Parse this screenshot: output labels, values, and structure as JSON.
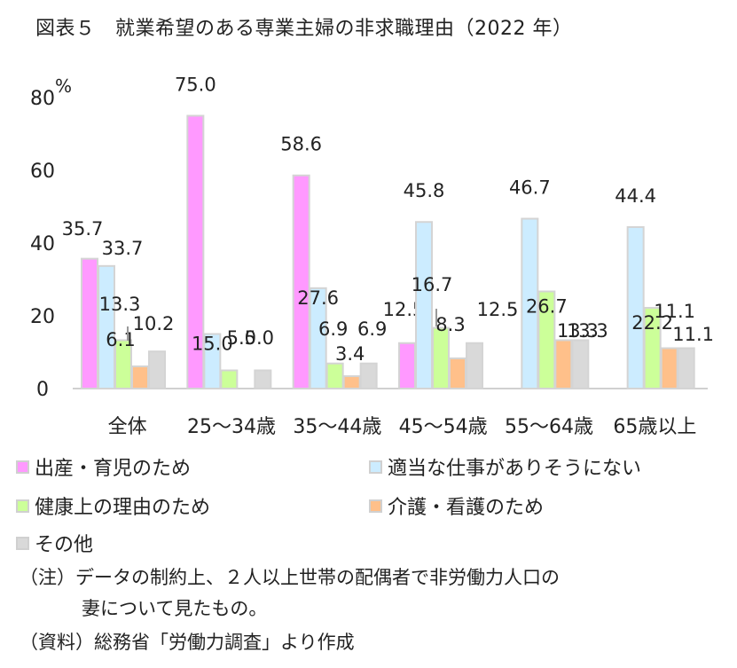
{
  "title": "図表５　就業希望のある専業主婦の非求職理由（2022 年）",
  "chart_data": {
    "type": "bar",
    "unit": "%",
    "ylim": [
      0,
      80
    ],
    "yticks": [
      0,
      20,
      40,
      60,
      80
    ],
    "grid": false,
    "legend_position": "bottom",
    "categories": [
      "全体",
      "25～34歳",
      "35～44歳",
      "45～54歳",
      "55～64歳",
      "65歳以上"
    ],
    "series": [
      {
        "name": "出産・育児のため",
        "color": "#FF99FF",
        "values": [
          35.7,
          75.0,
          58.6,
          12.5,
          null,
          null
        ]
      },
      {
        "name": "適当な仕事がありそうにない",
        "color": "#CCECFF",
        "values": [
          33.7,
          15.0,
          27.6,
          45.8,
          46.7,
          44.4
        ]
      },
      {
        "name": "健康上の理由のため",
        "color": "#CCFF99",
        "values": [
          13.3,
          5.0,
          6.9,
          16.7,
          26.7,
          22.2
        ]
      },
      {
        "name": "介護・看護のため",
        "color": "#FFC08A",
        "values": [
          6.1,
          null,
          3.4,
          8.3,
          13.3,
          11.1
        ]
      },
      {
        "name": "その他",
        "color": "#D9D9D9",
        "values": [
          10.2,
          5.0,
          6.9,
          12.5,
          13.3,
          11.1
        ]
      }
    ],
    "labels": [
      [
        "35.7",
        "75.0",
        "58.6",
        "12.5",
        "",
        ""
      ],
      [
        "33.7",
        "15.0",
        "27.6",
        "45.8",
        "46.7",
        "44.4"
      ],
      [
        "13.3",
        "5.0",
        "6.9",
        "16.7",
        "26.7",
        "22.2"
      ],
      [
        "6.1",
        "",
        "3.4",
        "8.3",
        "13.3",
        "11.1"
      ],
      [
        "10.2",
        "5.0",
        "6.9",
        "12.5",
        "13.3",
        "11.1"
      ]
    ]
  },
  "notes": {
    "note_line1": "（注）データの制約上、２人以上世帯の配偶者で非労働力人口の",
    "note_line2": "妻について見たもの。",
    "source": "（資料）総務省「労働力調査」より作成"
  }
}
